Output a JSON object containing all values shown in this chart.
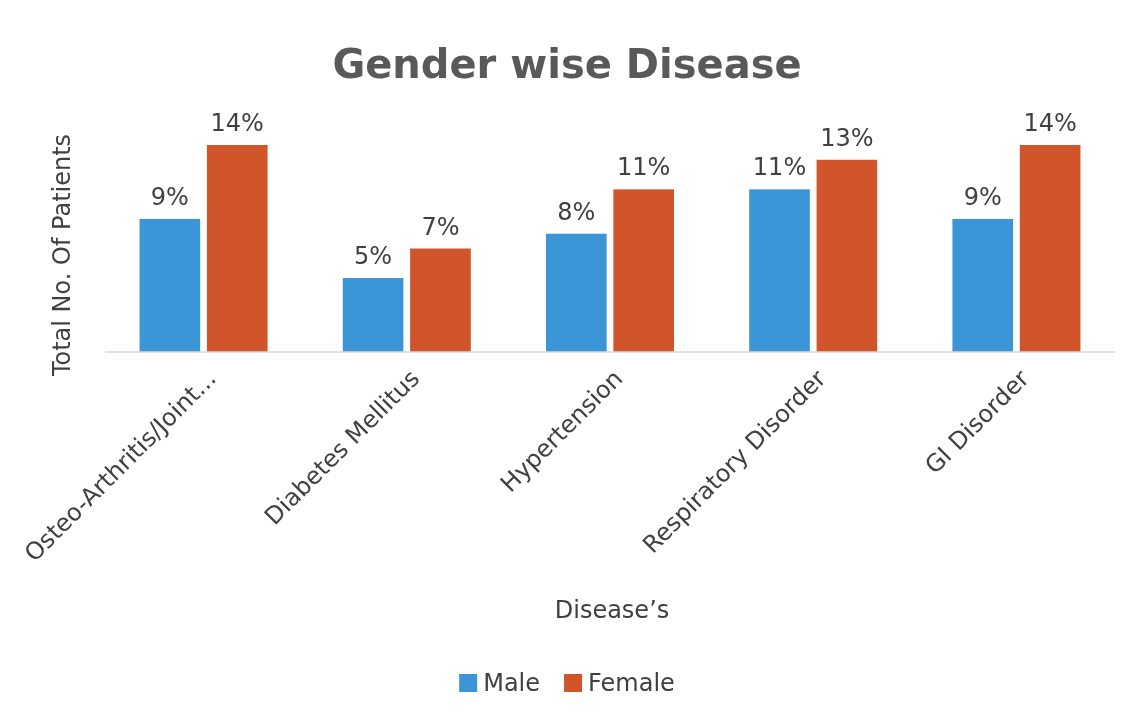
{
  "chart_data": {
    "type": "bar",
    "title": "Gender wise Disease",
    "xlabel": "Disease’s",
    "ylabel": "Total No. Of Patients",
    "categories": [
      "Osteo-Arthritis/Joint...",
      "Diabetes Mellitus",
      "Hypertension",
      "Respiratory Disorder",
      "GI Disorder"
    ],
    "series": [
      {
        "name": "Male",
        "color": "#3a96d6",
        "values": [
          9,
          5,
          8,
          11,
          9
        ],
        "value_labels": [
          "9%",
          "5%",
          "8%",
          "11%",
          "9%"
        ]
      },
      {
        "name": "Female",
        "color": "#d0552a",
        "values": [
          14,
          7,
          11,
          13,
          14
        ],
        "value_labels": [
          "14%",
          "7%",
          "11%",
          "13%",
          "14%"
        ]
      }
    ],
    "legend": "bottom"
  }
}
